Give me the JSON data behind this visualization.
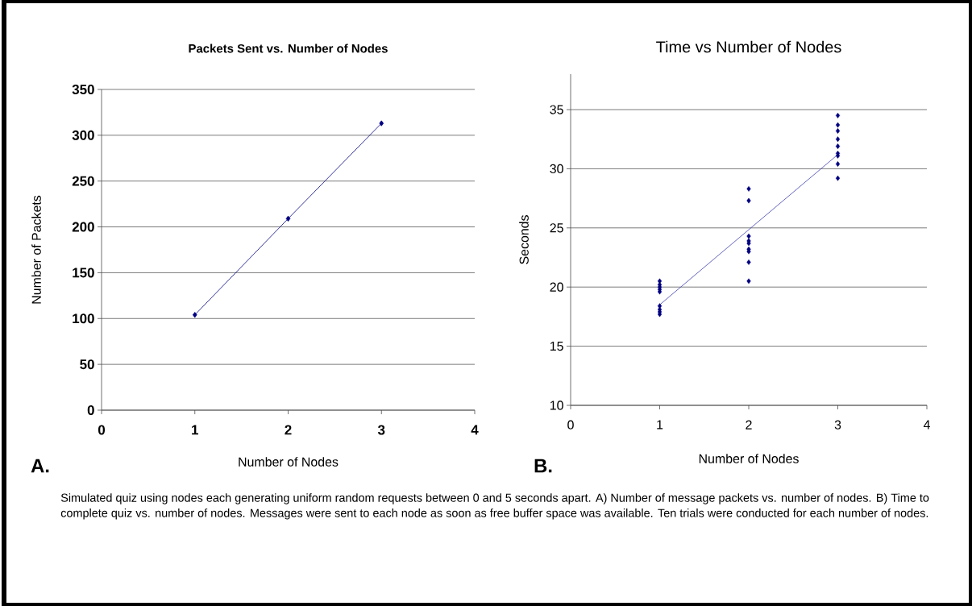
{
  "chart_data": [
    {
      "type": "line",
      "title": "Packets Sent vs. Number of Nodes",
      "xlabel": "Number of Nodes",
      "ylabel": "Number of Packets",
      "series": [
        {
          "color": "#000080",
          "x": [
            1,
            2,
            3
          ],
          "values": [
            104,
            209,
            313
          ]
        }
      ],
      "xlim": [
        0,
        4
      ],
      "xticks": [
        0,
        1,
        2,
        3,
        4
      ],
      "ylim": [
        0,
        350
      ],
      "yticks": [
        0,
        50,
        100,
        150,
        200,
        250,
        300,
        350
      ],
      "grid": "y",
      "marker": "diamond",
      "annotations": [
        "A.",
        "Simulated quiz using nodes each generating uniform random requests between 0 and 5 seconds apart. A) Number of message packets vs. number of nodes. B) Time to complete quiz vs. number of nodes.  Messages were sent to each node as soon as free buffer space was available.  Ten trials were conducted for each number of nodes."
      ]
    },
    {
      "type": "scatter",
      "title": "Time vs Number of Nodes",
      "xlabel": "Number of Nodes",
      "ylabel": "Seconds",
      "series": [
        {
          "color": "#000080",
          "x": [
            1,
            1,
            1,
            1,
            1,
            1,
            1,
            1,
            1,
            2,
            2,
            2,
            2,
            2,
            2,
            2,
            2,
            2,
            3,
            3,
            3,
            3,
            3,
            3,
            3,
            3,
            3
          ],
          "values": [
            20.5,
            20.2,
            20.0,
            19.8,
            19.6,
            18.4,
            18.1,
            17.9,
            17.7,
            28.3,
            27.3,
            24.3,
            23.9,
            23.7,
            23.2,
            23.0,
            22.1,
            20.5,
            34.5,
            33.7,
            33.2,
            32.5,
            31.9,
            31.3,
            31.1,
            30.4,
            29.2
          ]
        },
        {
          "type": "line",
          "marker": "none",
          "color": "#4040b0",
          "x": [
            1,
            3
          ],
          "values": [
            18.5,
            31.2
          ]
        }
      ],
      "xlim": [
        0,
        4
      ],
      "xticks": [
        0,
        1,
        2,
        3,
        4
      ],
      "ylim": [
        10,
        38
      ],
      "yticks": [
        10,
        15,
        20,
        25,
        30,
        35
      ],
      "grid": "y",
      "marker": "diamond",
      "annotations": [
        "B."
      ]
    }
  ]
}
